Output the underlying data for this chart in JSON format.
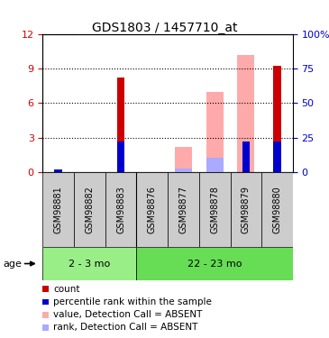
{
  "title": "GDS1803 / 1457710_at",
  "samples": [
    "GSM98881",
    "GSM98882",
    "GSM98883",
    "GSM98876",
    "GSM98877",
    "GSM98878",
    "GSM98879",
    "GSM98880"
  ],
  "group_labels": [
    "2 - 3 mo",
    "22 - 23 mo"
  ],
  "red_bars": [
    0.22,
    0.05,
    8.2,
    0.05,
    0.0,
    0.0,
    0.0,
    9.2
  ],
  "blue_bars": [
    0.22,
    0.0,
    2.7,
    0.0,
    0.0,
    0.0,
    2.7,
    2.7
  ],
  "pink_bars": [
    0.0,
    0.0,
    0.0,
    0.0,
    2.2,
    7.0,
    10.2,
    0.0
  ],
  "lavender_bars": [
    0.0,
    0.0,
    0.0,
    0.0,
    0.3,
    1.3,
    0.0,
    0.0
  ],
  "ylim_left": [
    0,
    12
  ],
  "ylim_right": [
    0,
    100
  ],
  "yticks_left": [
    0,
    3,
    6,
    9,
    12
  ],
  "yticks_right": [
    0,
    25,
    50,
    75,
    100
  ],
  "ytick_labels_left": [
    "0",
    "3",
    "6",
    "9",
    "12"
  ],
  "ytick_labels_right": [
    "0",
    "25",
    "50",
    "75",
    "100%"
  ],
  "red_color": "#cc0000",
  "blue_color": "#0000cc",
  "pink_color": "#ffaaaa",
  "lavender_color": "#aaaaff",
  "group1_indices": [
    0,
    1,
    2
  ],
  "group2_indices": [
    3,
    4,
    5,
    6,
    7
  ],
  "group1_color": "#99ee88",
  "group2_color": "#66dd55",
  "label_bg_color": "#cccccc",
  "age_label": "age",
  "legend_items": [
    [
      "#cc0000",
      "count"
    ],
    [
      "#0000cc",
      "percentile rank within the sample"
    ],
    [
      "#ffaaaa",
      "value, Detection Call = ABSENT"
    ],
    [
      "#aaaaff",
      "rank, Detection Call = ABSENT"
    ]
  ]
}
